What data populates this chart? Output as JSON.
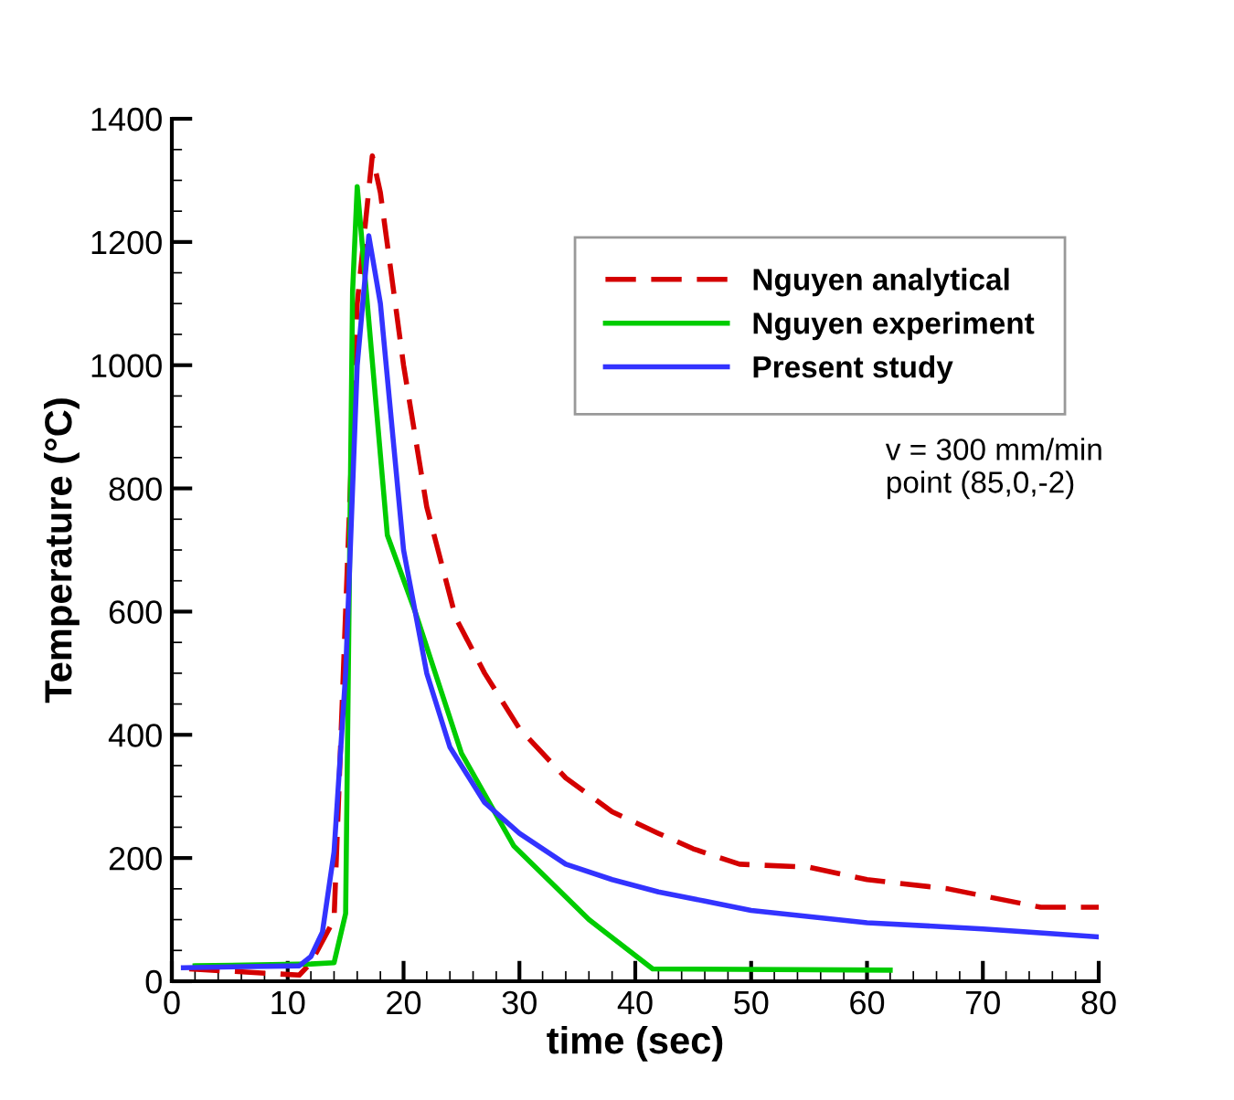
{
  "chart_data": {
    "type": "line",
    "xlabel": "time (sec)",
    "ylabel": "Temperature (°C)",
    "xlim": [
      0,
      80
    ],
    "xticks": [
      0,
      10,
      20,
      30,
      40,
      50,
      60,
      70,
      80
    ],
    "ylim": [
      0,
      1400
    ],
    "yticks": [
      0,
      200,
      400,
      600,
      800,
      1000,
      1200,
      1400
    ],
    "grid": false,
    "legend": "top right",
    "annotations": [
      "v = 300 mm/min\npoint (85,0,-2)"
    ],
    "series": [
      {
        "name": "Nguyen analytical",
        "color": "#d40000",
        "line_style": "dashed",
        "x": [
          1.5,
          11,
          12,
          14,
          16,
          17.3,
          18,
          20,
          22,
          24.5,
          27,
          30,
          34,
          38,
          42,
          45,
          49,
          55,
          60,
          67,
          75,
          80
        ],
        "values": [
          20,
          10,
          30,
          100,
          1100,
          1340,
          1280,
          1000,
          770,
          590,
          500,
          410,
          330,
          275,
          240,
          215,
          190,
          185,
          165,
          150,
          120,
          120
        ]
      },
      {
        "name": "Nguyen experiment",
        "color": "#00cc00",
        "line_style": "solid",
        "x": [
          2,
          12,
          14,
          15,
          15.6,
          16,
          18.6,
          21,
          25,
          29.5,
          36,
          41.5,
          62
        ],
        "values": [
          25,
          28,
          30,
          110,
          1120,
          1290,
          724,
          600,
          370,
          220,
          100,
          20,
          18
        ]
      },
      {
        "name": "Present study",
        "color": "#3333ff",
        "line_style": "solid",
        "x": [
          1,
          11,
          12,
          13,
          14,
          15,
          16,
          17,
          18,
          19,
          20,
          22,
          24,
          27,
          30,
          34,
          38,
          42,
          46,
          50,
          60,
          70,
          80
        ],
        "values": [
          22,
          25,
          40,
          80,
          210,
          500,
          1000,
          1210,
          1100,
          900,
          700,
          500,
          380,
          290,
          240,
          190,
          165,
          145,
          130,
          115,
          95,
          85,
          72
        ]
      }
    ]
  }
}
